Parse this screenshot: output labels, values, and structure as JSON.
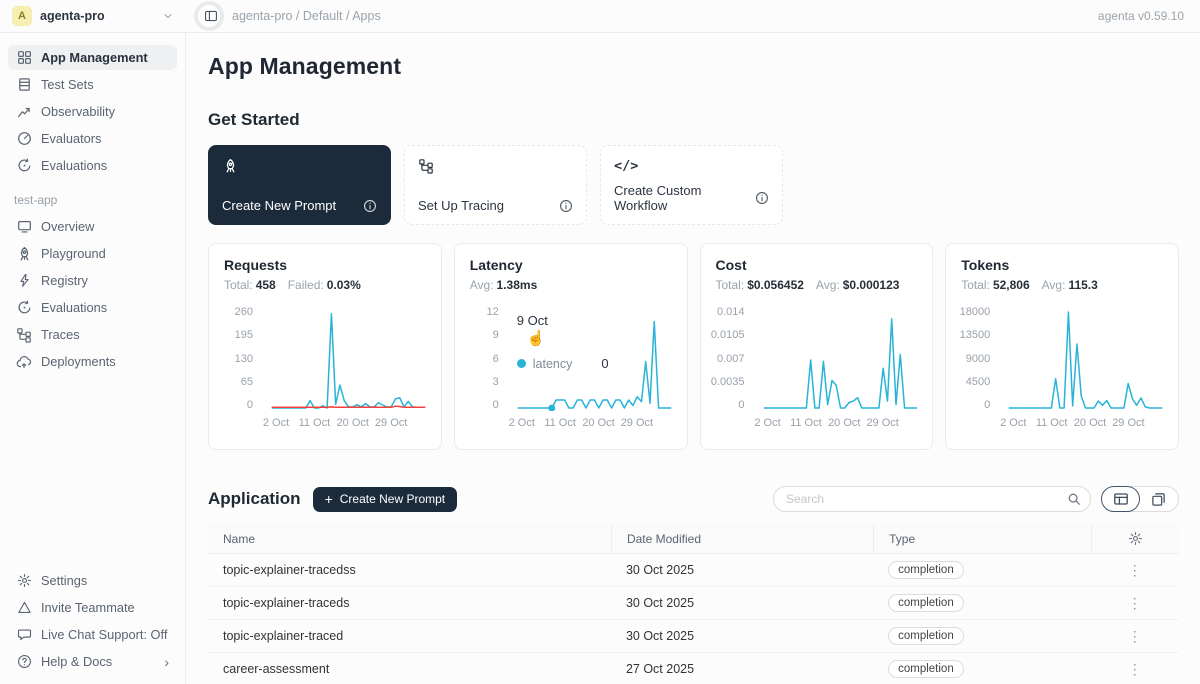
{
  "topbar": {
    "avatar_letter": "A",
    "workspace": "agenta-pro",
    "breadcrumb": "agenta-pro / Default / Apps",
    "version": "agenta v0.59.10"
  },
  "sidebar": {
    "main_items": [
      {
        "label": "App Management",
        "icon": "grid",
        "active": true
      },
      {
        "label": "Test Sets",
        "icon": "table"
      },
      {
        "label": "Observability",
        "icon": "chart"
      },
      {
        "label": "Evaluators",
        "icon": "gauge"
      },
      {
        "label": "Evaluations",
        "icon": "loop"
      }
    ],
    "project_label": "test-app",
    "project_items": [
      {
        "label": "Overview",
        "icon": "monitor"
      },
      {
        "label": "Playground",
        "icon": "rocket"
      },
      {
        "label": "Registry",
        "icon": "bolt"
      },
      {
        "label": "Evaluations",
        "icon": "loop"
      },
      {
        "label": "Traces",
        "icon": "tree"
      },
      {
        "label": "Deployments",
        "icon": "cloud"
      }
    ],
    "footer_items": [
      {
        "label": "Settings",
        "icon": "gear"
      },
      {
        "label": "Invite Teammate",
        "icon": "triangle"
      },
      {
        "label": "Live Chat Support: Off",
        "icon": "chat"
      },
      {
        "label": "Help & Docs",
        "icon": "help",
        "trailing": "›"
      }
    ]
  },
  "main": {
    "title": "App Management",
    "get_started": {
      "heading": "Get Started",
      "cards": [
        {
          "label": "Create New Prompt"
        },
        {
          "label": "Set Up Tracing"
        },
        {
          "label": "Create Custom Workflow"
        }
      ]
    }
  },
  "application": {
    "heading": "Application",
    "create_button": "Create New Prompt",
    "search_placeholder": "Search",
    "columns": [
      "Name",
      "Date Modified",
      "Type"
    ],
    "rows": [
      {
        "name": "topic-explainer-tracedss",
        "date": "30 Oct 2025",
        "type": "completion"
      },
      {
        "name": "topic-explainer-traceds",
        "date": "30 Oct 2025",
        "type": "completion"
      },
      {
        "name": "topic-explainer-traced",
        "date": "30 Oct 2025",
        "type": "completion"
      },
      {
        "name": "career-assessment",
        "date": "27 Oct 2025",
        "type": "completion"
      }
    ]
  },
  "colors": {
    "accent_blue": "#27b4d8",
    "error_red": "#f5413d",
    "brand_dark": "#1c2b3b"
  },
  "chart_data": [
    {
      "id": "requests",
      "type": "line",
      "title": "Requests",
      "stats": [
        {
          "label": "Total:",
          "value": "458"
        },
        {
          "label": "Failed:",
          "value": "0.03%"
        }
      ],
      "y_ticks": [
        "260",
        "195",
        "130",
        "65",
        "0"
      ],
      "ymax": 260,
      "ylim": [
        0,
        260
      ],
      "x_ticks": [
        {
          "day": 2,
          "label": "2 Oct"
        },
        {
          "day": 11,
          "label": "11 Oct"
        },
        {
          "day": 20,
          "label": "20 Oct"
        },
        {
          "day": 29,
          "label": "29 Oct"
        }
      ],
      "x_day_range": [
        1,
        37
      ],
      "series": [
        {
          "name": "success",
          "color": "#27b4d8",
          "values": [
            0,
            0,
            0,
            0,
            0,
            0,
            0,
            0,
            0,
            20,
            0,
            0,
            6,
            0,
            255,
            10,
            62,
            20,
            3,
            3,
            9,
            3,
            12,
            3,
            3,
            14,
            8,
            3,
            3,
            25,
            28,
            3,
            18,
            3,
            2,
            2,
            2
          ]
        },
        {
          "name": "failed",
          "color": "#f5413d",
          "values": [
            2,
            2,
            2,
            2,
            2,
            2,
            2,
            2,
            2,
            2,
            2,
            2,
            2,
            2,
            3,
            2,
            2,
            2,
            2,
            2,
            2,
            2,
            2,
            2,
            2,
            2,
            2,
            2,
            2,
            5,
            4,
            2,
            2,
            2,
            2,
            2,
            2
          ]
        }
      ]
    },
    {
      "id": "latency",
      "type": "line",
      "title": "Latency",
      "stats": [
        {
          "label": "Avg:",
          "value": "1.38ms"
        }
      ],
      "y_ticks": [
        "12",
        "9",
        "6",
        "3",
        "0"
      ],
      "ymax": 12,
      "ylim": [
        0,
        12
      ],
      "x_ticks": [
        {
          "day": 2,
          "label": "2 Oct"
        },
        {
          "day": 11,
          "label": "11 Oct"
        },
        {
          "day": 20,
          "label": "20 Oct"
        },
        {
          "day": 29,
          "label": "29 Oct"
        }
      ],
      "x_day_range": [
        1,
        37
      ],
      "series": [
        {
          "name": "latency",
          "color": "#27b4d8",
          "values": [
            0,
            0,
            0,
            0,
            0,
            0,
            0,
            0,
            0,
            1,
            1,
            1,
            0,
            0,
            1,
            1,
            0,
            1,
            1,
            0,
            1,
            1,
            0,
            1,
            1,
            0,
            1,
            0.3,
            1.4,
            0.8,
            5.8,
            0.6,
            10.8,
            0,
            0,
            0,
            0
          ]
        }
      ],
      "marker": {
        "day": 9,
        "value": 0
      },
      "tooltip": {
        "title": "9 Oct",
        "series_label": "latency",
        "value": "0"
      }
    },
    {
      "id": "cost",
      "type": "line",
      "title": "Cost",
      "stats": [
        {
          "label": "Total:",
          "value": "$0.056452"
        },
        {
          "label": "Avg:",
          "value": "$0.000123"
        }
      ],
      "y_ticks": [
        "0.014",
        "0.0105",
        "0.007",
        "0.0035",
        "0"
      ],
      "ymax": 0.014,
      "ylim": [
        0,
        0.014
      ],
      "x_ticks": [
        {
          "day": 2,
          "label": "2 Oct"
        },
        {
          "day": 11,
          "label": "11 Oct"
        },
        {
          "day": 20,
          "label": "20 Oct"
        },
        {
          "day": 29,
          "label": "29 Oct"
        }
      ],
      "x_day_range": [
        1,
        37
      ],
      "series": [
        {
          "name": "cost",
          "color": "#27b4d8",
          "values": [
            0,
            0,
            0,
            0,
            0,
            0,
            0,
            0,
            0,
            0,
            0,
            0.007,
            0,
            0,
            0.0068,
            0.0005,
            0.004,
            0.0033,
            0,
            0,
            0.0008,
            0.001,
            0.0015,
            0,
            0,
            0,
            0,
            0,
            0.0058,
            0.001,
            0.013,
            0.0005,
            0.0078,
            0,
            0,
            0,
            0
          ]
        }
      ]
    },
    {
      "id": "tokens",
      "type": "line",
      "title": "Tokens",
      "stats": [
        {
          "label": "Total:",
          "value": "52,806"
        },
        {
          "label": "Avg:",
          "value": "115.3"
        }
      ],
      "y_ticks": [
        "18000",
        "13500",
        "9000",
        "4500",
        "0"
      ],
      "ymax": 18000,
      "ylim": [
        0,
        18000
      ],
      "x_ticks": [
        {
          "day": 2,
          "label": "2 Oct"
        },
        {
          "day": 11,
          "label": "11 Oct"
        },
        {
          "day": 20,
          "label": "20 Oct"
        },
        {
          "day": 29,
          "label": "29 Oct"
        }
      ],
      "x_day_range": [
        1,
        37
      ],
      "series": [
        {
          "name": "tokens",
          "color": "#27b4d8",
          "values": [
            0,
            0,
            0,
            0,
            0,
            0,
            0,
            0,
            0,
            0,
            0,
            5500,
            0,
            0,
            18000,
            400,
            12000,
            2300,
            0,
            0,
            0,
            1300,
            500,
            1400,
            0,
            0,
            0,
            0,
            4600,
            1700,
            500,
            1900,
            200,
            0,
            0,
            0,
            0
          ]
        }
      ]
    }
  ]
}
